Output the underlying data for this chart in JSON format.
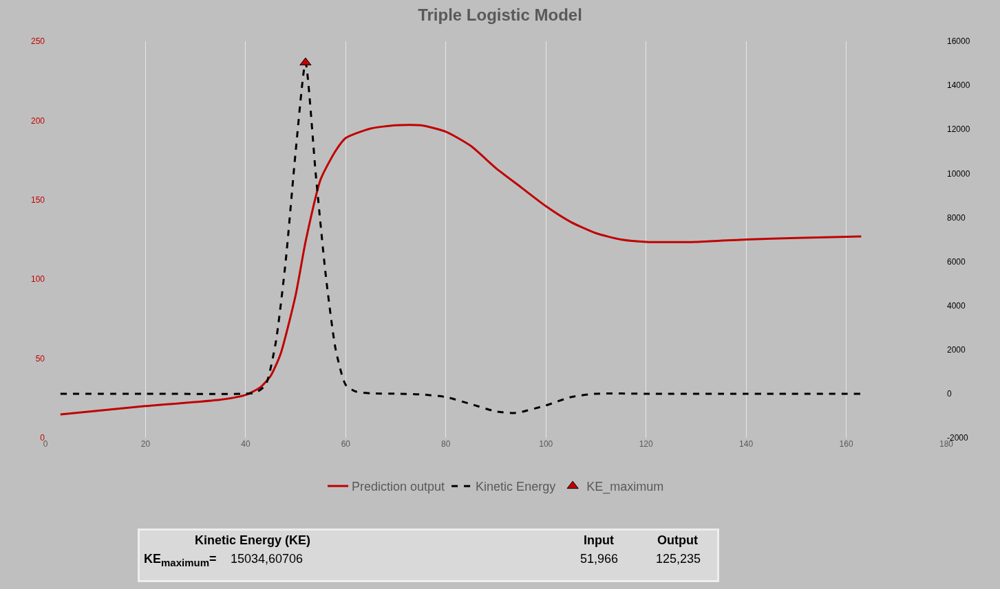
{
  "chart_data": {
    "type": "line",
    "title": "Triple Logistic Model",
    "xlim": [
      0,
      180
    ],
    "xticks": [
      0,
      20,
      40,
      60,
      80,
      100,
      120,
      140,
      160,
      180
    ],
    "ylim": [
      0,
      250
    ],
    "yticks": [
      0,
      50,
      100,
      150,
      200,
      250
    ],
    "y2lim": [
      -2000,
      16000
    ],
    "y2ticks": [
      -2000,
      0,
      2000,
      4000,
      6000,
      8000,
      10000,
      12000,
      14000,
      16000
    ],
    "grid": "x",
    "legend": "bottom",
    "series": [
      {
        "name": "Prediction output",
        "color": "#c00000",
        "line_style": "solid",
        "marker": "none",
        "x": [
          3,
          20,
          35,
          40,
          43,
          45,
          47,
          50,
          52,
          55,
          58,
          60,
          65,
          70,
          75,
          80,
          85,
          90,
          95,
          100,
          105,
          110,
          115,
          120,
          130,
          140,
          150,
          163
        ],
        "values": [
          14.7,
          20,
          24,
          27,
          32,
          39,
          53,
          90,
          124,
          163,
          181,
          189,
          195,
          197,
          197,
          193,
          184,
          170,
          158,
          146,
          136,
          129,
          125,
          123.5,
          123.5,
          125,
          126,
          127
        ]
      },
      {
        "name": "Kinetic Energy",
        "axis": "y2",
        "color": "#000000",
        "line_style": "dashed",
        "marker": "none",
        "x": [
          3,
          20,
          40,
          42,
          44,
          46,
          48,
          50,
          51.966,
          54,
          56,
          58,
          60,
          62,
          65,
          70,
          75,
          80,
          85,
          90,
          94,
          100,
          105,
          110,
          120,
          140,
          163
        ],
        "values": [
          0,
          0,
          0,
          50,
          400,
          2300,
          6000,
          11000,
          15030,
          10000,
          5400,
          2000,
          400,
          100,
          20,
          0,
          -30,
          -150,
          -470,
          -800,
          -870,
          -530,
          -150,
          0,
          0,
          0,
          0
        ]
      },
      {
        "name": "KE_maximum",
        "type": "scatter",
        "axis": "y2",
        "color": "#c00000",
        "marker": "triangle",
        "x": [
          51.966
        ],
        "values": [
          15030
        ]
      }
    ],
    "annotations": [
      "Kinetic Energy (KE)",
      "KE$_{maximum}$=",
      "15034,60706",
      "Input",
      "Output",
      "51,966",
      "125,235"
    ]
  }
}
